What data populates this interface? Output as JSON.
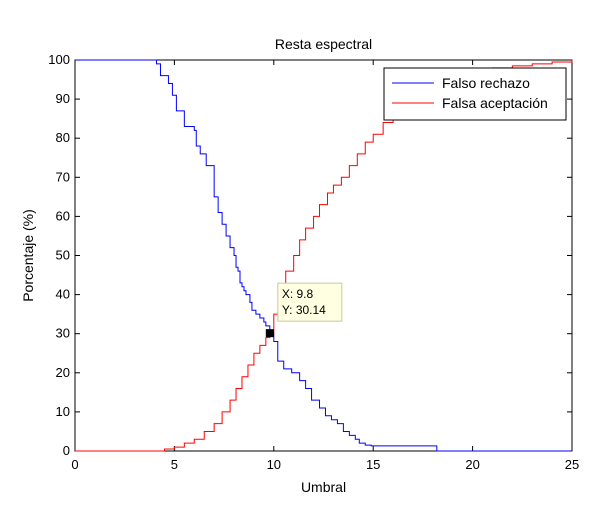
{
  "chart_data": {
    "type": "line",
    "title": "Resta espectral",
    "xlabel": "Umbral",
    "ylabel": "Porcentaje (%)",
    "xlim": [
      0,
      25
    ],
    "ylim": [
      0,
      100
    ],
    "xticks": [
      0,
      5,
      10,
      15,
      20,
      25
    ],
    "yticks": [
      0,
      10,
      20,
      30,
      40,
      50,
      60,
      70,
      80,
      90,
      100
    ],
    "grid": false,
    "legend_position": "top-right",
    "series": [
      {
        "name": "Falso rechazo",
        "color": "#0000ff",
        "step": true,
        "x": [
          0,
          4.0,
          4.1,
          4.3,
          4.7,
          4.9,
          5.1,
          5.5,
          6.0,
          6.1,
          6.3,
          6.6,
          7.0,
          7.2,
          7.4,
          7.6,
          7.8,
          8.0,
          8.1,
          8.2,
          8.3,
          8.4,
          8.5,
          8.6,
          8.8,
          8.9,
          9.1,
          9.3,
          9.5,
          9.6,
          9.8,
          10.0,
          10.2,
          10.5,
          10.9,
          11.3,
          11.6,
          11.9,
          12.3,
          12.6,
          12.9,
          13.2,
          13.5,
          13.8,
          14.1,
          14.3,
          14.6,
          14.9,
          16.0,
          17.0,
          18.2,
          25.0
        ],
        "y": [
          100,
          100,
          99,
          96,
          94,
          91,
          87,
          83,
          82,
          78,
          76,
          73,
          65,
          61,
          58,
          55,
          52,
          50,
          47,
          46,
          43,
          42,
          41,
          40,
          38,
          36,
          35,
          34,
          33,
          32,
          30.14,
          28,
          23,
          21,
          20,
          18,
          16,
          13,
          11,
          9,
          8,
          7,
          5,
          4,
          3,
          2,
          1.5,
          1.3,
          1.3,
          1.3,
          0,
          0
        ]
      },
      {
        "name": "Falsa aceptación",
        "color": "#ff0000",
        "step": true,
        "x": [
          0,
          4.0,
          4.5,
          5.0,
          5.5,
          6.0,
          6.5,
          7.0,
          7.4,
          7.8,
          8.1,
          8.4,
          8.7,
          9.0,
          9.3,
          9.6,
          9.8,
          10.0,
          10.3,
          10.6,
          11.0,
          11.3,
          11.6,
          12.0,
          12.3,
          12.7,
          13.0,
          13.4,
          13.8,
          14.2,
          14.6,
          15.0,
          15.5,
          16.0,
          16.5,
          17.0,
          17.5,
          18.0,
          18.5,
          19.0,
          19.5,
          20.0,
          21.0,
          22.0,
          23.0,
          24.0,
          25.0
        ],
        "y": [
          0,
          0,
          0.5,
          1,
          2,
          3,
          5,
          7,
          10,
          13,
          16,
          19,
          22,
          25,
          27,
          29,
          30.14,
          35,
          41,
          46,
          50,
          54,
          57,
          60,
          63,
          66,
          68,
          70,
          73,
          76,
          79,
          81,
          84,
          86,
          88,
          90,
          92,
          93,
          94,
          95,
          96,
          97,
          98,
          98.5,
          99,
          99.5,
          100
        ]
      }
    ],
    "annotations": [
      {
        "type": "datatip",
        "x": 9.8,
        "y": 30.14,
        "x_text": "X: 9.8",
        "y_text": "Y: 30.14"
      }
    ]
  }
}
